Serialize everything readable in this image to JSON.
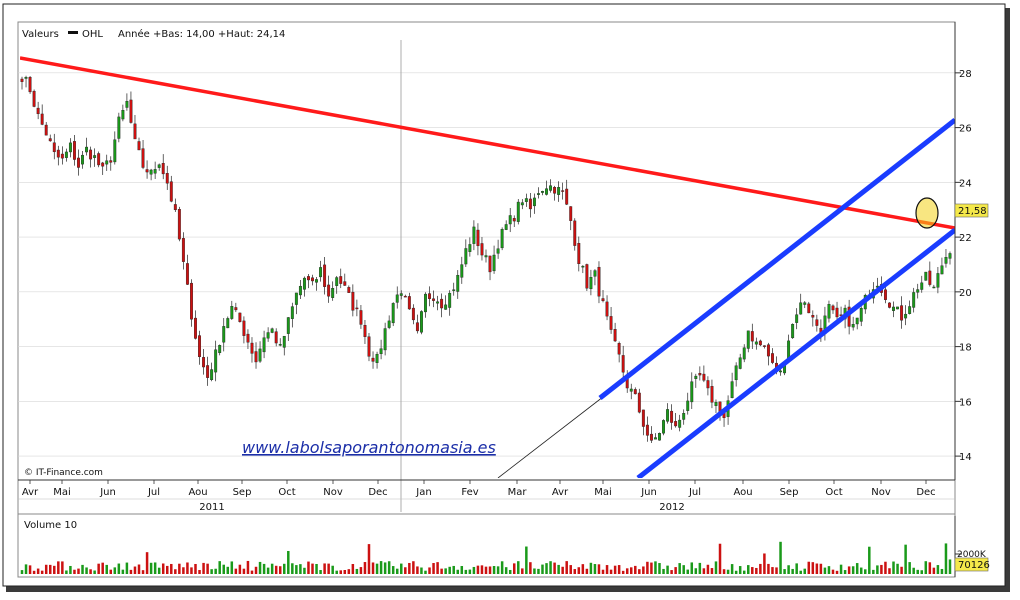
{
  "chart_data": {
    "type": "candlestick",
    "header": {
      "valeurs_label": "Valeurs",
      "series_name": "OHL",
      "range_text": "Année +Bas: 14,00 +Haut: 24,14"
    },
    "source_label": "© IT-Finance.com",
    "watermark": "www.labolsaporantonomasia.es",
    "month_labels": [
      "Avr",
      "Mai",
      "Jun",
      "Jul",
      "Aou",
      "Sep",
      "Oct",
      "Nov",
      "Dec",
      "Jan",
      "Fev",
      "Mar",
      "Avr",
      "Mai",
      "Jun",
      "Jul",
      "Aou",
      "Sep",
      "Oct",
      "Nov",
      "Dec"
    ],
    "year_labels": [
      "2011",
      "2012"
    ],
    "y_ticks": [
      "28",
      "26",
      "24",
      "22",
      "20",
      "18",
      "16",
      "14"
    ],
    "y_tick_values": [
      28,
      26,
      24,
      22,
      20,
      18,
      16,
      14
    ],
    "current_price_label": "21,58",
    "current_price": 21.58,
    "y_min": 13.2,
    "y_max": 29.2,
    "price_path": [
      [
        0,
        27.9
      ],
      [
        2,
        27.4
      ],
      [
        4,
        26.4
      ],
      [
        6,
        25.8
      ],
      [
        8,
        25.0
      ],
      [
        10,
        24.8
      ],
      [
        12,
        25.3
      ],
      [
        14,
        24.6
      ],
      [
        16,
        25.2
      ],
      [
        18,
        24.9
      ],
      [
        20,
        24.4
      ],
      [
        22,
        24.9
      ],
      [
        24,
        26.2
      ],
      [
        26,
        26.9
      ],
      [
        28,
        25.4
      ],
      [
        30,
        24.6
      ],
      [
        32,
        24.3
      ],
      [
        34,
        24.8
      ],
      [
        36,
        24.0
      ],
      [
        38,
        22.8
      ],
      [
        40,
        21.0
      ],
      [
        42,
        19.2
      ],
      [
        44,
        17.6
      ],
      [
        46,
        16.9
      ],
      [
        48,
        17.7
      ],
      [
        50,
        18.8
      ],
      [
        52,
        19.4
      ],
      [
        54,
        18.9
      ],
      [
        56,
        18.2
      ],
      [
        58,
        17.5
      ],
      [
        60,
        18.4
      ],
      [
        62,
        18.6
      ],
      [
        64,
        17.9
      ],
      [
        66,
        18.9
      ],
      [
        68,
        19.9
      ],
      [
        70,
        20.5
      ],
      [
        72,
        20.2
      ],
      [
        74,
        20.8
      ],
      [
        76,
        19.8
      ],
      [
        78,
        20.6
      ],
      [
        80,
        20.1
      ],
      [
        82,
        19.5
      ],
      [
        84,
        19.0
      ],
      [
        86,
        17.8
      ],
      [
        88,
        17.5
      ],
      [
        90,
        18.6
      ],
      [
        92,
        19.6
      ],
      [
        94,
        20.1
      ],
      [
        96,
        19.2
      ],
      [
        98,
        18.4
      ],
      [
        100,
        19.8
      ],
      [
        102,
        19.9
      ],
      [
        104,
        19.6
      ],
      [
        106,
        19.9
      ],
      [
        108,
        20.5
      ],
      [
        110,
        21.5
      ],
      [
        112,
        22.2
      ],
      [
        114,
        21.4
      ],
      [
        116,
        20.9
      ],
      [
        118,
        21.8
      ],
      [
        120,
        22.4
      ],
      [
        122,
        22.8
      ],
      [
        124,
        23.4
      ],
      [
        126,
        23.0
      ],
      [
        128,
        23.7
      ],
      [
        130,
        23.9
      ],
      [
        132,
        23.8
      ],
      [
        134,
        23.6
      ],
      [
        136,
        22.6
      ],
      [
        138,
        21.2
      ],
      [
        140,
        20.3
      ],
      [
        142,
        20.6
      ],
      [
        144,
        19.5
      ],
      [
        146,
        18.4
      ],
      [
        148,
        17.6
      ],
      [
        150,
        16.6
      ],
      [
        152,
        16.1
      ],
      [
        154,
        15.2
      ],
      [
        156,
        14.4
      ],
      [
        158,
        14.9
      ],
      [
        160,
        15.6
      ],
      [
        162,
        15.0
      ],
      [
        164,
        15.7
      ],
      [
        166,
        16.5
      ],
      [
        168,
        16.9
      ],
      [
        170,
        16.3
      ],
      [
        172,
        15.9
      ],
      [
        174,
        15.4
      ],
      [
        176,
        16.6
      ],
      [
        178,
        17.6
      ],
      [
        180,
        18.6
      ],
      [
        182,
        18.1
      ],
      [
        184,
        18.0
      ],
      [
        186,
        17.3
      ],
      [
        188,
        17.0
      ],
      [
        190,
        18.3
      ],
      [
        192,
        19.3
      ],
      [
        194,
        19.7
      ],
      [
        196,
        19.0
      ],
      [
        198,
        18.6
      ],
      [
        200,
        19.4
      ],
      [
        202,
        18.9
      ],
      [
        204,
        19.2
      ],
      [
        206,
        18.7
      ],
      [
        208,
        19.3
      ],
      [
        210,
        20.1
      ],
      [
        212,
        20.4
      ],
      [
        214,
        19.9
      ],
      [
        216,
        19.4
      ],
      [
        218,
        19.1
      ],
      [
        220,
        19.6
      ],
      [
        222,
        20.2
      ],
      [
        224,
        20.5
      ],
      [
        226,
        20.1
      ],
      [
        228,
        21.0
      ],
      [
        230,
        21.6
      ]
    ],
    "volume": {
      "label": "Volume 10",
      "tick_label": "2000K",
      "last_value_label": "70126"
    },
    "colors": {
      "up": "#1a9a1a",
      "down": "#cc1111",
      "resistance_line": "#ff1a1a",
      "channel_lines": "#1a3cff",
      "price_label_bg": "#f5e94a",
      "highlight_circle": "#f2d21a"
    }
  }
}
